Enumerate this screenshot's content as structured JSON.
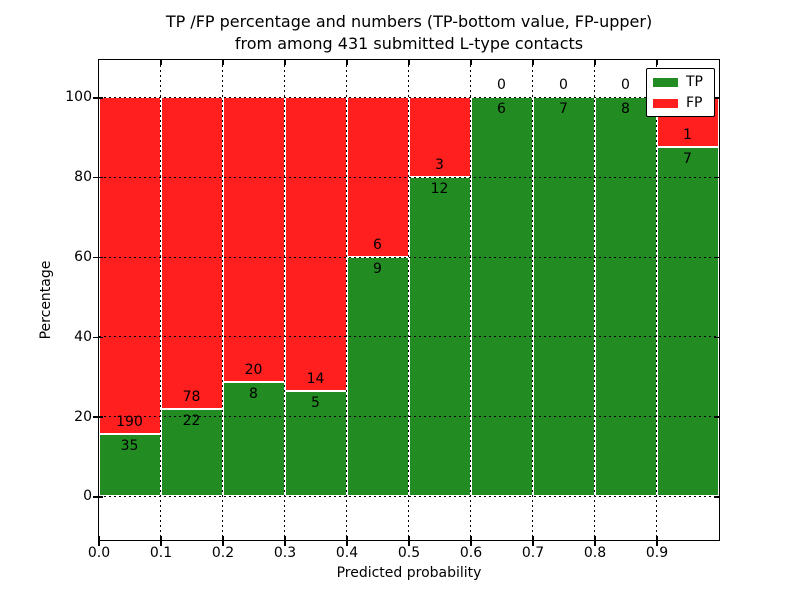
{
  "chart_data": {
    "type": "bar",
    "stacked": true,
    "title_line1": "TP /FP percentage and numbers (TP-bottom value, FP-upper)",
    "title_line2": "from among 431 submitted L-type contacts",
    "xlabel": "Predicted probability",
    "ylabel": "Percentage",
    "x_tick_labels": [
      "0.0",
      "0.1",
      "0.2",
      "0.3",
      "0.4",
      "0.5",
      "0.6",
      "0.7",
      "0.8",
      "0.9"
    ],
    "y_tick_values": [
      0,
      20,
      40,
      60,
      80,
      100
    ],
    "xlim": [
      0.0,
      1.0
    ],
    "ylim": [
      -10.8,
      109.5
    ],
    "bin_width": 0.1,
    "grid": "dotted",
    "total_contacts": 431,
    "bar_edge_color": "#ffffff",
    "categories": [
      "0.0-0.1",
      "0.1-0.2",
      "0.2-0.3",
      "0.3-0.4",
      "0.4-0.5",
      "0.5-0.6",
      "0.6-0.7",
      "0.7-0.8",
      "0.8-0.9",
      "0.9-1.0"
    ],
    "series": [
      {
        "name": "TP",
        "color": "#228b22",
        "values": [
          35,
          22,
          8,
          5,
          9,
          12,
          6,
          7,
          8,
          7
        ]
      },
      {
        "name": "FP",
        "color": "#ff1f1f",
        "values": [
          190,
          78,
          20,
          14,
          6,
          3,
          0,
          0,
          0,
          1
        ]
      }
    ],
    "tp_percentages": [
      15.6,
      22.0,
      28.6,
      26.3,
      60.0,
      80.0,
      100.0,
      100.0,
      100.0,
      87.5
    ],
    "legend": {
      "position": "upper right",
      "items": [
        {
          "label": "TP",
          "color": "#228b22"
        },
        {
          "label": "FP",
          "color": "#ff1f1f"
        }
      ]
    }
  }
}
